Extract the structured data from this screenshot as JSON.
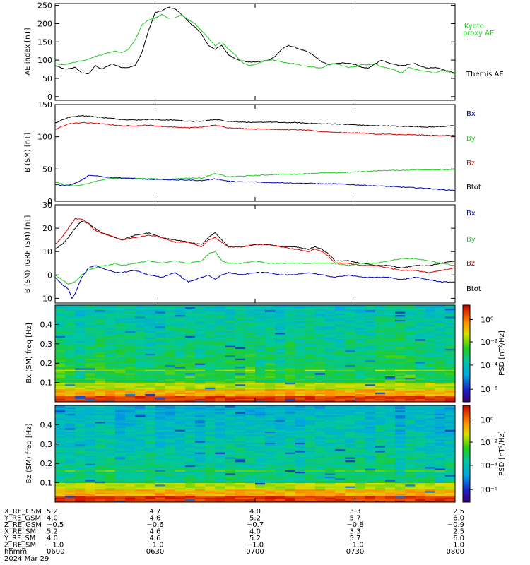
{
  "colors": {
    "black": "#000000",
    "red": "#dd0000",
    "green": "#22cc22",
    "blue": "#0000bb",
    "kyoto_label": "#22cc22",
    "bx_label": "#0000bb",
    "by_label": "#22cc22",
    "bz_label": "#dd0000",
    "btot_label": "#000000"
  },
  "time_axis": {
    "ticks": [
      "0600",
      "0630",
      "0700",
      "0730",
      "0800"
    ],
    "range_min": [
      0,
      120
    ]
  },
  "ephemeris": {
    "rows": [
      {
        "label": "X_RE_GSM",
        "values": [
          "5.2",
          "4.7",
          "4.0",
          "3.3",
          "2.5"
        ]
      },
      {
        "label": "Y_RE_GSM",
        "values": [
          "4.0",
          "4.6",
          "5.2",
          "5.7",
          "6.0"
        ]
      },
      {
        "label": "Z_RE_GSM",
        "values": [
          "−0.5",
          "−0.6",
          "−0.7",
          "−0.8",
          "−0.9"
        ]
      },
      {
        "label": "X_RE_SM",
        "values": [
          "5.2",
          "4.6",
          "4.0",
          "3.3",
          "2.5"
        ]
      },
      {
        "label": "Y_RE_SM",
        "values": [
          "4.0",
          "4.6",
          "5.2",
          "5.7",
          "6.0"
        ]
      },
      {
        "label": "Z_RE_SM",
        "values": [
          "−1.0",
          "−1.0",
          "−1.0",
          "−1.0",
          "−1.0"
        ]
      },
      {
        "label": "hhmm",
        "values": [
          "0600",
          "0630",
          "0700",
          "0730",
          "0800"
        ]
      }
    ],
    "date": "2024 Mar 29"
  },
  "chart_data": [
    {
      "type": "line",
      "ylabel": "AE index [nT]",
      "ylim": [
        -10,
        255
      ],
      "yticks": [
        0,
        50,
        100,
        150,
        200,
        250
      ],
      "grid": false,
      "series": [
        {
          "name": "Themis AE",
          "color": "#000000",
          "x": [
            0,
            3,
            6,
            8,
            10,
            12,
            14,
            17,
            20,
            22,
            24,
            26,
            28,
            30,
            32,
            34,
            36,
            38,
            40,
            42,
            44,
            46,
            48,
            50,
            52,
            55,
            58,
            60,
            62,
            64,
            66,
            68,
            70,
            72,
            74,
            76,
            78,
            80,
            82,
            84,
            86,
            88,
            90,
            92,
            94,
            96,
            98,
            100,
            102,
            104,
            106,
            108,
            110,
            112,
            114,
            116,
            118,
            120
          ],
          "y": [
            85,
            75,
            80,
            65,
            62,
            85,
            75,
            90,
            80,
            80,
            85,
            120,
            180,
            230,
            235,
            245,
            240,
            225,
            205,
            190,
            170,
            140,
            130,
            140,
            115,
            100,
            95,
            95,
            97,
            100,
            110,
            130,
            140,
            135,
            128,
            122,
            110,
            95,
            88,
            90,
            92,
            92,
            88,
            80,
            78,
            90,
            100,
            92,
            88,
            85,
            88,
            90,
            82,
            78,
            80,
            75,
            70,
            65
          ]
        },
        {
          "name": "Kyoto proxy AE",
          "color": "#22cc22",
          "x": [
            0,
            3,
            6,
            9,
            12,
            14,
            16,
            18,
            20,
            22,
            24,
            26,
            28,
            30,
            32,
            34,
            36,
            38,
            40,
            42,
            44,
            46,
            48,
            50,
            52,
            54,
            56,
            58,
            60,
            62,
            64,
            66,
            68,
            70,
            72,
            74,
            76,
            78,
            80,
            82,
            84,
            86,
            88,
            90,
            92,
            94,
            96,
            98,
            100,
            102,
            104,
            106,
            108,
            110,
            112,
            114,
            116,
            118,
            120
          ],
          "y": [
            90,
            88,
            95,
            100,
            110,
            115,
            120,
            125,
            120,
            130,
            155,
            195,
            210,
            215,
            225,
            215,
            215,
            225,
            210,
            200,
            180,
            160,
            140,
            150,
            130,
            115,
            95,
            85,
            88,
            95,
            100,
            100,
            95,
            92,
            90,
            85,
            82,
            80,
            78,
            88,
            90,
            85,
            80,
            82,
            88,
            87,
            90,
            82,
            78,
            72,
            65,
            80,
            75,
            70,
            68,
            65,
            72,
            68,
            62
          ]
        }
      ],
      "legend": {
        "placement": "right",
        "labels": [
          "Kyoto",
          "proxy AE",
          "Themis AE"
        ]
      }
    },
    {
      "type": "line",
      "ylabel": "B (SM) [nT]",
      "ylim": [
        0,
        150
      ],
      "yticks": [
        0,
        50,
        100,
        150
      ],
      "grid": false,
      "series": [
        {
          "name": "Btot",
          "color": "#000000",
          "x": [
            0,
            2,
            4,
            8,
            12,
            16,
            20,
            24,
            28,
            30,
            32,
            36,
            40,
            44,
            48,
            52,
            56,
            60,
            64,
            68,
            72,
            76,
            80,
            84,
            88,
            92,
            96,
            100,
            104,
            108,
            112,
            116,
            120
          ],
          "y": [
            121,
            126,
            130,
            133,
            131,
            129,
            127,
            126,
            127,
            127,
            126,
            126,
            124,
            124,
            127,
            124,
            123,
            122,
            123,
            122,
            122,
            121,
            120,
            120,
            119,
            118,
            117,
            117,
            116,
            116,
            115,
            116,
            117
          ]
        },
        {
          "name": "Bz",
          "color": "#dd0000",
          "x": [
            0,
            2,
            4,
            8,
            12,
            16,
            20,
            24,
            28,
            30,
            32,
            36,
            40,
            44,
            48,
            52,
            56,
            60,
            64,
            68,
            72,
            76,
            80,
            84,
            88,
            92,
            96,
            100,
            104,
            108,
            112,
            116,
            120
          ],
          "y": [
            111,
            116,
            120,
            122,
            121,
            119,
            117,
            117,
            118,
            117,
            116,
            115,
            114,
            115,
            118,
            114,
            113,
            112,
            112,
            111,
            111,
            110,
            108,
            107,
            106,
            106,
            104,
            104,
            103,
            103,
            102,
            102,
            102
          ]
        },
        {
          "name": "By",
          "color": "#22cc22",
          "x": [
            0,
            2,
            4,
            6,
            8,
            10,
            12,
            14,
            16,
            20,
            24,
            28,
            30,
            32,
            34,
            36,
            40,
            44,
            48,
            52,
            56,
            60,
            64,
            68,
            72,
            76,
            80,
            84,
            88,
            92,
            96,
            100,
            104,
            108,
            112,
            116,
            120
          ],
          "y": [
            30,
            27,
            25,
            24,
            25,
            28,
            31,
            33,
            35,
            36,
            36,
            35,
            35,
            34,
            34,
            35,
            36,
            36,
            43,
            38,
            39,
            40,
            41,
            42,
            42,
            43,
            44,
            44,
            45,
            46,
            47,
            48,
            48,
            49,
            49,
            49,
            49
          ]
        },
        {
          "name": "Bx",
          "color": "#0000bb",
          "x": [
            0,
            2,
            4,
            6,
            8,
            10,
            12,
            14,
            16,
            20,
            24,
            28,
            32,
            36,
            40,
            44,
            48,
            52,
            56,
            60,
            64,
            68,
            72,
            76,
            80,
            84,
            88,
            92,
            96,
            100,
            104,
            108,
            112,
            116,
            120
          ],
          "y": [
            26,
            25,
            24,
            28,
            33,
            40,
            40,
            38,
            37,
            36,
            35,
            34,
            34,
            33,
            33,
            32,
            35,
            31,
            30,
            30,
            29,
            29,
            28,
            28,
            27,
            27,
            26,
            25,
            24,
            23,
            22,
            21,
            20,
            18,
            17
          ]
        }
      ],
      "legend": {
        "placement": "right",
        "labels": [
          "Bx",
          "By",
          "Bz",
          "Btot"
        ]
      }
    },
    {
      "type": "line",
      "ylabel": "B (SM)–IGRF (SM) [nT]",
      "ylim": [
        -12,
        30
      ],
      "yticks": [
        -10,
        0,
        10,
        20,
        30
      ],
      "grid": false,
      "series": [
        {
          "name": "Btot",
          "color": "#000000",
          "x": [
            0,
            2,
            4,
            6,
            8,
            10,
            12,
            14,
            16,
            18,
            20,
            24,
            28,
            32,
            36,
            40,
            44,
            46,
            48,
            50,
            52,
            56,
            60,
            64,
            68,
            72,
            76,
            78,
            80,
            82,
            84,
            86,
            88,
            92,
            96,
            100,
            104,
            108,
            112,
            116,
            120
          ],
          "y": [
            11,
            13,
            16,
            20,
            23,
            22,
            20,
            18,
            17,
            16,
            15,
            17,
            18,
            16,
            15,
            14,
            13,
            16,
            18,
            15,
            12,
            12,
            13,
            13,
            12,
            12,
            11,
            12,
            11,
            9,
            6,
            6,
            6,
            5,
            4,
            4,
            3,
            4,
            4,
            5,
            6
          ]
        },
        {
          "name": "Bz",
          "color": "#dd0000",
          "x": [
            0,
            2,
            4,
            6,
            8,
            10,
            12,
            14,
            16,
            18,
            20,
            24,
            28,
            32,
            36,
            40,
            44,
            46,
            48,
            50,
            52,
            56,
            60,
            64,
            68,
            72,
            76,
            78,
            80,
            82,
            84,
            86,
            88,
            92,
            96,
            100,
            104,
            108,
            112,
            116,
            120
          ],
          "y": [
            13,
            16,
            20,
            24,
            24,
            22,
            19,
            18,
            17,
            16,
            15,
            16,
            17,
            16,
            14,
            14,
            12,
            15,
            16,
            14,
            12,
            12,
            13,
            13,
            12,
            11,
            10,
            11,
            10,
            8,
            5,
            5,
            5,
            4,
            4,
            3,
            2,
            2,
            1,
            2,
            3
          ]
        },
        {
          "name": "By",
          "color": "#22cc22",
          "x": [
            0,
            2,
            4,
            6,
            8,
            10,
            12,
            14,
            16,
            18,
            20,
            24,
            28,
            32,
            36,
            40,
            44,
            46,
            48,
            50,
            52,
            56,
            60,
            64,
            68,
            72,
            76,
            80,
            84,
            88,
            92,
            96,
            100,
            104,
            108,
            112,
            116,
            120
          ],
          "y": [
            0,
            -2,
            -4,
            -3,
            0,
            2,
            3,
            4,
            4,
            5,
            4,
            5,
            6,
            5,
            6,
            5,
            6,
            9,
            10,
            6,
            5,
            5,
            6,
            5,
            5,
            5,
            5,
            5,
            5,
            4,
            5,
            5,
            6,
            7,
            7,
            6,
            5,
            4
          ]
        },
        {
          "name": "Bx",
          "color": "#0000bb",
          "x": [
            0,
            2,
            4,
            5,
            6,
            8,
            10,
            12,
            14,
            16,
            18,
            20,
            24,
            28,
            32,
            36,
            40,
            44,
            46,
            48,
            50,
            52,
            56,
            60,
            64,
            68,
            72,
            76,
            80,
            84,
            88,
            92,
            96,
            100,
            104,
            108,
            112,
            116,
            120
          ],
          "y": [
            -1,
            -4,
            -6,
            -10,
            -8,
            -1,
            3,
            4,
            3,
            2,
            1,
            1,
            2,
            0,
            -1,
            1,
            -3,
            -1,
            0,
            -2,
            0,
            1,
            0,
            1,
            1,
            0,
            0,
            1,
            0,
            -1,
            0,
            -1,
            -1,
            -1,
            -2,
            -1,
            -2,
            -3,
            -3
          ]
        }
      ],
      "legend": {
        "placement": "right",
        "labels": [
          "Bx",
          "By",
          "Bz",
          "Btot"
        ]
      }
    },
    {
      "type": "heatmap",
      "ylabel": "Bx (SM) freq [Hz]",
      "ylim": [
        0,
        0.5
      ],
      "yticks": [
        0.1,
        0.2,
        0.3,
        0.4
      ],
      "colorbar": {
        "label": "PSD [nT²/Hz]",
        "ticks": [
          "10⁰",
          "10⁻²",
          "10⁻⁴",
          "10⁻⁶"
        ]
      }
    },
    {
      "type": "heatmap",
      "ylabel": "Bz (SM) freq [Hz]",
      "ylim": [
        0,
        0.5
      ],
      "yticks": [
        0.1,
        0.2,
        0.3,
        0.4
      ],
      "colorbar": {
        "label": "PSD [nT²/Hz]",
        "ticks": [
          "10⁰",
          "10⁻²",
          "10⁻⁴",
          "10⁻⁶"
        ]
      }
    }
  ]
}
